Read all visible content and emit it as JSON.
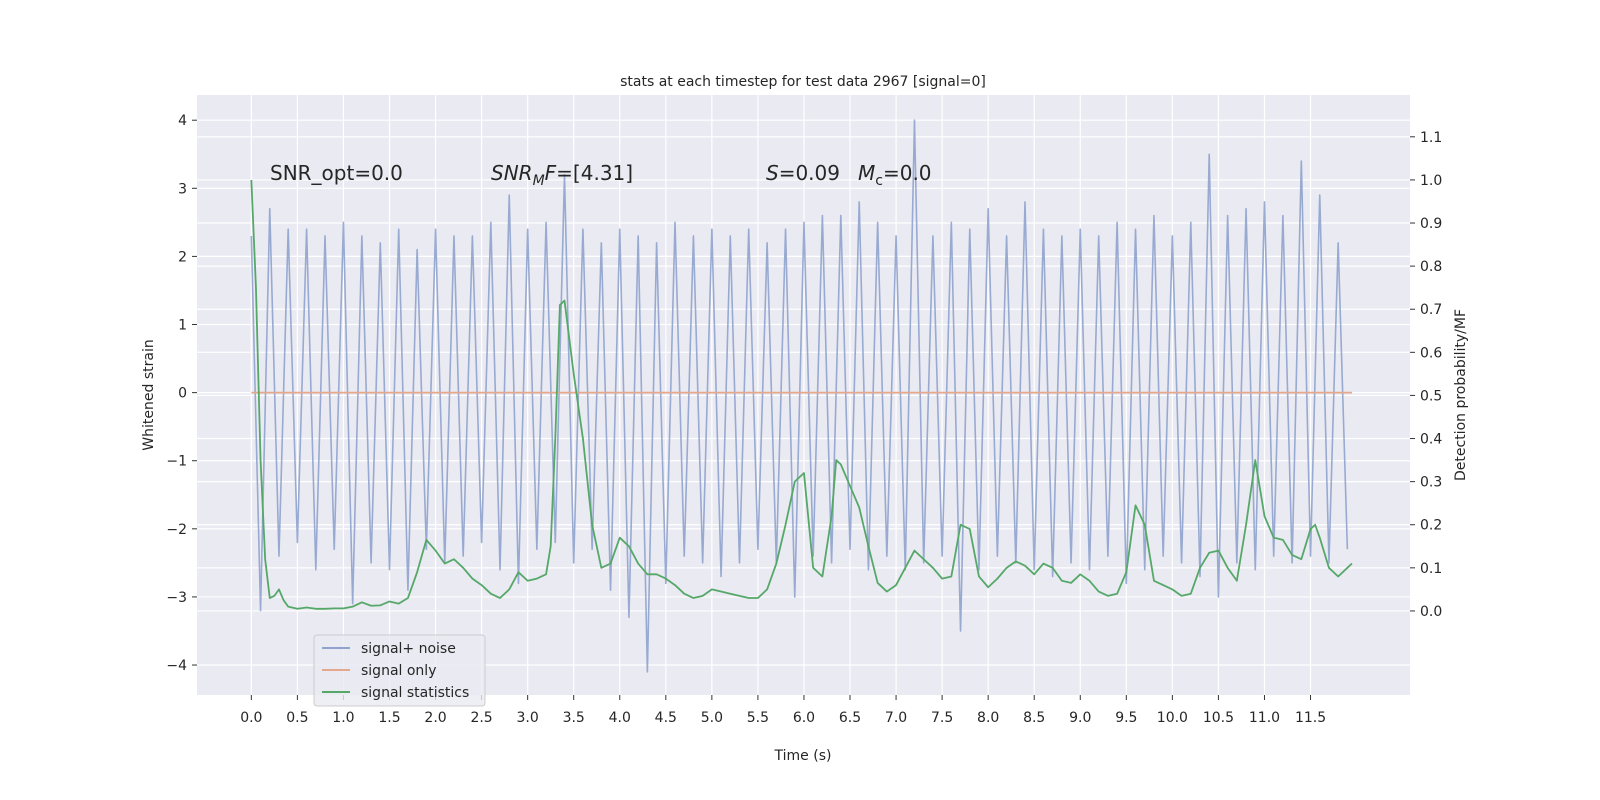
{
  "chart_data": {
    "type": "line",
    "title": "stats at each timestep for test data 2967 [signal=0]",
    "xlabel": "Time (s)",
    "ylabel": "Whitened strain",
    "y2label": "Detection probability/MF",
    "annotations": [
      [
        "SNR_opt=0.0"
      ],
      [
        "SNR",
        "M",
        "F",
        "=[4.31]"
      ],
      [
        "S",
        "=0.09"
      ],
      [
        "M",
        "c",
        "=0.0"
      ]
    ],
    "xlim": [
      -0.59,
      12.58
    ],
    "ylim": [
      -4.44,
      4.37
    ],
    "y2lim": [
      -0.195,
      1.197
    ],
    "xticks": [
      {
        "value": 0,
        "label": "0.0"
      },
      0.5,
      {
        "value": 1,
        "label": "1.0"
      },
      1.5,
      {
        "value": 2,
        "label": "2.0"
      },
      2.5,
      {
        "value": 3,
        "label": "3.0"
      },
      3.5,
      {
        "value": 4,
        "label": "4.0"
      },
      4.5,
      {
        "value": 5,
        "label": "5.0"
      },
      5.5,
      {
        "value": 6,
        "label": "6.0"
      },
      6.5,
      {
        "value": 7,
        "label": "7.0"
      },
      7.5,
      {
        "value": 8,
        "label": "8.0"
      },
      8.5,
      {
        "value": 9,
        "label": "9.0"
      },
      9.5,
      {
        "value": 10,
        "label": "10.0"
      },
      10.5,
      {
        "value": 11,
        "label": "11.0"
      },
      11.5
    ],
    "yticks": [
      {
        "value": -4,
        "label": "−4"
      },
      {
        "value": -3,
        "label": "−3"
      },
      {
        "value": -2,
        "label": "−2"
      },
      {
        "value": -1,
        "label": "−1"
      },
      0,
      1,
      2,
      3,
      4
    ],
    "y2ticks": [
      {
        "value": 0,
        "label": "0.0"
      },
      0.1,
      0.2,
      0.3,
      0.4,
      0.5,
      0.6,
      0.7,
      0.8,
      0.9,
      {
        "value": 1,
        "label": "1.0"
      },
      1.1
    ],
    "grid": true,
    "legend": "lower left",
    "series": [
      {
        "name": "signal+ noise",
        "color": "#8fa3cd",
        "x": [
          0.0,
          0.1,
          0.2,
          0.3,
          0.4,
          0.5,
          0.6,
          0.7,
          0.8,
          0.9,
          1.0,
          1.1,
          1.2,
          1.3,
          1.4,
          1.5,
          1.6,
          1.7,
          1.8,
          1.9,
          2.0,
          2.1,
          2.2,
          2.3,
          2.4,
          2.5,
          2.6,
          2.7,
          2.8,
          2.9,
          3.0,
          3.1,
          3.2,
          3.3,
          3.4,
          3.5,
          3.6,
          3.7,
          3.8,
          3.9,
          4.0,
          4.1,
          4.2,
          4.3,
          4.4,
          4.5,
          4.6,
          4.7,
          4.8,
          4.9,
          5.0,
          5.1,
          5.2,
          5.3,
          5.4,
          5.5,
          5.6,
          5.7,
          5.8,
          5.9,
          6.0,
          6.1,
          6.2,
          6.3,
          6.4,
          6.5,
          6.6,
          6.7,
          6.8,
          6.9,
          7.0,
          7.1,
          7.2,
          7.3,
          7.4,
          7.5,
          7.6,
          7.7,
          7.8,
          7.9,
          8.0,
          8.1,
          8.2,
          8.3,
          8.4,
          8.5,
          8.6,
          8.7,
          8.8,
          8.9,
          9.0,
          9.1,
          9.2,
          9.3,
          9.4,
          9.5,
          9.6,
          9.7,
          9.8,
          9.9,
          10.0,
          10.1,
          10.2,
          10.3,
          10.4,
          10.5,
          10.6,
          10.7,
          10.8,
          10.9,
          11.0,
          11.1,
          11.2,
          11.3,
          11.4,
          11.5,
          11.6,
          11.7,
          11.8,
          11.9
        ],
        "values": [
          2.3,
          -3.2,
          2.7,
          -2.4,
          2.4,
          -2.2,
          2.4,
          -2.6,
          2.3,
          -2.3,
          2.5,
          -3.1,
          2.3,
          -2.5,
          2.2,
          -2.6,
          2.4,
          -2.9,
          2.1,
          -2.3,
          2.4,
          -2.5,
          2.3,
          -2.4,
          2.3,
          -2.2,
          2.5,
          -2.6,
          2.9,
          -2.8,
          2.4,
          -2.3,
          2.5,
          -2.2,
          3.2,
          -2.5,
          2.4,
          -2.3,
          2.2,
          -2.9,
          2.4,
          -3.3,
          2.3,
          -4.1,
          2.2,
          -2.8,
          2.5,
          -2.4,
          2.3,
          -2.5,
          2.4,
          -2.7,
          2.3,
          -2.5,
          2.4,
          -2.3,
          2.2,
          -2.5,
          2.4,
          -3.0,
          2.5,
          -2.4,
          2.6,
          -2.5,
          2.6,
          -2.3,
          2.8,
          -2.6,
          2.5,
          -2.4,
          2.3,
          -2.6,
          4.0,
          -2.5,
          2.3,
          -2.4,
          2.5,
          -3.5,
          2.4,
          -2.6,
          2.7,
          -2.4,
          2.3,
          -2.5,
          2.8,
          -2.6,
          2.4,
          -2.7,
          2.3,
          -2.5,
          2.4,
          -2.6,
          2.3,
          -2.4,
          2.5,
          -2.8,
          2.4,
          -2.6,
          2.6,
          -2.4,
          2.3,
          -2.5,
          2.5,
          -2.7,
          3.5,
          -3.0,
          2.6,
          -2.5,
          2.7,
          -2.6,
          2.8,
          -2.4,
          2.6,
          -2.5,
          3.4,
          -2.4,
          2.9,
          -2.5,
          2.2,
          -2.3
        ]
      },
      {
        "name": "signal only",
        "color": "#e5a88c",
        "x": [
          0.0,
          11.95
        ],
        "values": [
          0,
          0
        ]
      },
      {
        "name": "signal statistics",
        "color": "#55a868",
        "axis": "y2",
        "x": [
          0.0,
          0.05,
          0.1,
          0.15,
          0.2,
          0.25,
          0.3,
          0.35,
          0.4,
          0.5,
          0.6,
          0.7,
          0.8,
          0.9,
          1.0,
          1.1,
          1.2,
          1.3,
          1.4,
          1.5,
          1.6,
          1.7,
          1.8,
          1.9,
          2.0,
          2.1,
          2.2,
          2.3,
          2.4,
          2.5,
          2.6,
          2.7,
          2.8,
          2.9,
          3.0,
          3.1,
          3.2,
          3.25,
          3.3,
          3.35,
          3.4,
          3.5,
          3.6,
          3.7,
          3.8,
          3.9,
          4.0,
          4.1,
          4.2,
          4.3,
          4.4,
          4.5,
          4.6,
          4.7,
          4.8,
          4.9,
          5.0,
          5.1,
          5.2,
          5.3,
          5.4,
          5.5,
          5.6,
          5.7,
          5.8,
          5.9,
          6.0,
          6.1,
          6.2,
          6.3,
          6.35,
          6.4,
          6.5,
          6.6,
          6.7,
          6.8,
          6.9,
          7.0,
          7.1,
          7.2,
          7.3,
          7.4,
          7.5,
          7.6,
          7.7,
          7.8,
          7.9,
          8.0,
          8.1,
          8.2,
          8.3,
          8.4,
          8.5,
          8.6,
          8.7,
          8.8,
          8.9,
          9.0,
          9.1,
          9.2,
          9.3,
          9.4,
          9.5,
          9.6,
          9.7,
          9.8,
          9.9,
          10.0,
          10.1,
          10.2,
          10.3,
          10.4,
          10.5,
          10.6,
          10.7,
          10.8,
          10.9,
          11.0,
          11.1,
          11.2,
          11.3,
          11.4,
          11.5,
          11.55,
          11.6,
          11.7,
          11.8,
          11.9,
          11.95
        ],
        "values": [
          1.0,
          0.75,
          0.35,
          0.12,
          0.03,
          0.035,
          0.05,
          0.025,
          0.01,
          0.005,
          0.008,
          0.005,
          0.005,
          0.006,
          0.006,
          0.01,
          0.02,
          0.012,
          0.013,
          0.022,
          0.017,
          0.03,
          0.09,
          0.165,
          0.14,
          0.11,
          0.12,
          0.1,
          0.075,
          0.06,
          0.04,
          0.03,
          0.05,
          0.09,
          0.07,
          0.075,
          0.085,
          0.15,
          0.4,
          0.71,
          0.72,
          0.55,
          0.4,
          0.2,
          0.1,
          0.11,
          0.17,
          0.15,
          0.11,
          0.085,
          0.085,
          0.075,
          0.06,
          0.04,
          0.03,
          0.035,
          0.05,
          0.045,
          0.04,
          0.035,
          0.03,
          0.03,
          0.05,
          0.11,
          0.2,
          0.3,
          0.32,
          0.1,
          0.08,
          0.22,
          0.35,
          0.34,
          0.29,
          0.24,
          0.15,
          0.065,
          0.045,
          0.06,
          0.1,
          0.14,
          0.12,
          0.1,
          0.075,
          0.08,
          0.2,
          0.19,
          0.08,
          0.055,
          0.075,
          0.1,
          0.115,
          0.105,
          0.085,
          0.11,
          0.1,
          0.07,
          0.065,
          0.085,
          0.07,
          0.045,
          0.035,
          0.04,
          0.09,
          0.245,
          0.2,
          0.07,
          0.06,
          0.05,
          0.035,
          0.04,
          0.1,
          0.135,
          0.14,
          0.1,
          0.07,
          0.2,
          0.35,
          0.22,
          0.17,
          0.165,
          0.13,
          0.12,
          0.19,
          0.2,
          0.17,
          0.1,
          0.08,
          0.1,
          0.11
        ]
      }
    ]
  }
}
